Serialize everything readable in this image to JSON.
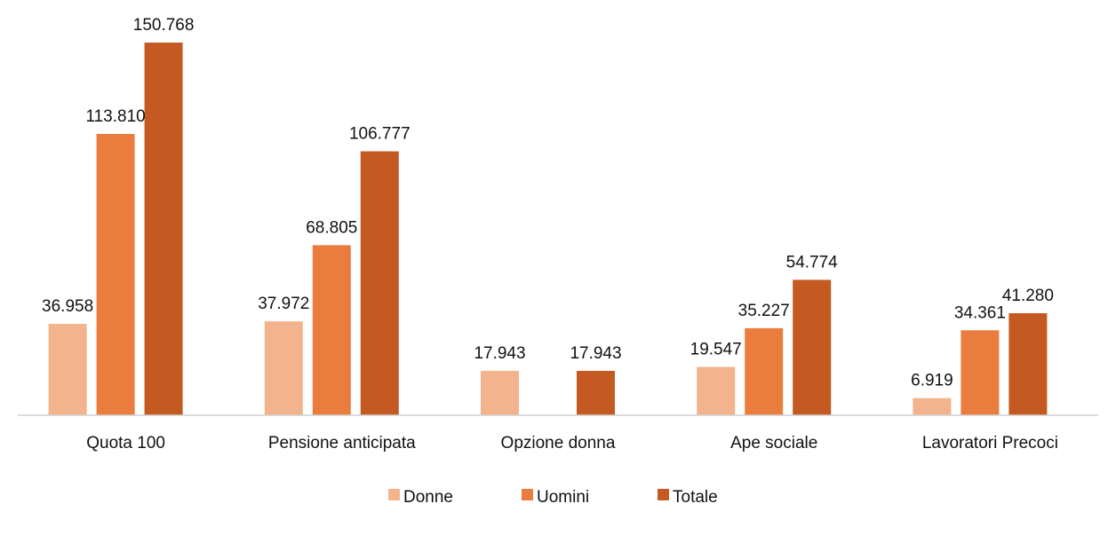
{
  "chart_data": {
    "type": "bar",
    "title": "",
    "xlabel": "",
    "ylabel": "",
    "ylim": [
      0,
      150768
    ],
    "grid": false,
    "legend_position": "bottom",
    "categories": [
      "Quota 100",
      "Pensione anticipata",
      "Opzione donna",
      "Ape sociale",
      "Lavoratori Precoci"
    ],
    "series": [
      {
        "name": "Donne",
        "color": "#f3b38d",
        "values": [
          36958,
          37972,
          17943,
          19547,
          6919
        ],
        "labels": [
          "36.958",
          "37.972",
          "17.943",
          "19.547",
          "6.919"
        ]
      },
      {
        "name": "Uomini",
        "color": "#ea7d3e",
        "values": [
          113810,
          68805,
          null,
          35227,
          34361
        ],
        "labels": [
          "113.810",
          "68.805",
          "",
          "35.227",
          "34.361"
        ]
      },
      {
        "name": "Totale",
        "color": "#c45a22",
        "values": [
          150768,
          106777,
          17943,
          54774,
          41280
        ],
        "labels": [
          "150.768",
          "106.777",
          "17.943",
          "54.774",
          "41.280"
        ]
      }
    ]
  }
}
